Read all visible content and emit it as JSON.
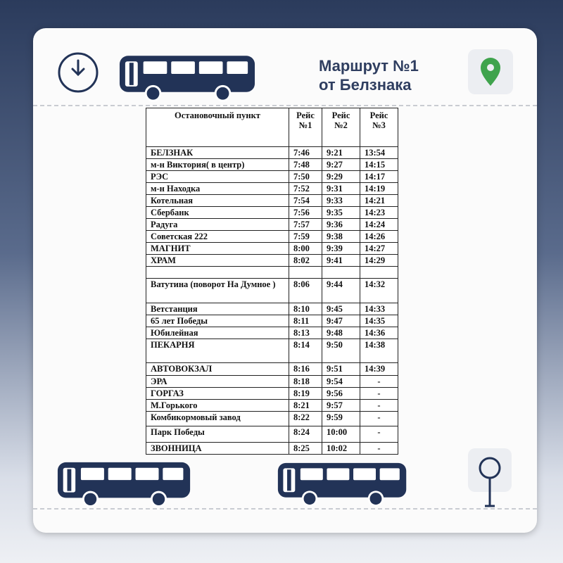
{
  "header": {
    "title_line1": "Маршрут №1",
    "title_line2": "от Белзнака"
  },
  "table": {
    "columns": [
      "Остановочный пункт",
      "Рейс №1",
      "Рейс №2",
      "Рейс №3"
    ],
    "rows": [
      [
        "БЕЛЗНАК",
        "7:46",
        "9:21",
        "13:54"
      ],
      [
        "м-н Виктория( в центр)",
        "7:48",
        "9:27",
        "14:15"
      ],
      [
        "РЭС",
        "7:50",
        "9:29",
        "14:17"
      ],
      [
        "м-н Находка",
        "7:52",
        "9:31",
        "14:19"
      ],
      [
        "Котельная",
        "7:54",
        "9:33",
        "14:21"
      ],
      [
        "Сбербанк",
        "7:56",
        "9:35",
        "14:23"
      ],
      [
        "Радуга",
        "7:57",
        "9:36",
        "14:24"
      ],
      [
        "Советская 222",
        "7:59",
        "9:38",
        "14:26"
      ],
      [
        "МАГНИТ",
        "8:00",
        "9:39",
        "14:27"
      ],
      [
        "ХРАМ",
        "8:02",
        "9:41",
        "14:29"
      ],
      [
        "Ватутина (поворот На Думное )",
        "8:06",
        "9:44",
        "14:32"
      ],
      [
        "Ветстанция",
        "8:10",
        "9:45",
        "14:33"
      ],
      [
        "65 лет Победы",
        "8:11",
        "9:47",
        "14:35"
      ],
      [
        "Юбилейная",
        "8:13",
        "9:48",
        "14:36"
      ],
      [
        "ПЕКАРНЯ",
        "8:14",
        "9:50",
        "14:38"
      ],
      [
        "АВТОВОКЗАЛ",
        "8:16",
        "9:51",
        "14:39"
      ],
      [
        "ЭРА",
        "8:18",
        "9:54",
        "-"
      ],
      [
        "ГОРГАЗ",
        "8:19",
        "9:56",
        "-"
      ],
      [
        "М.Горького",
        "8:21",
        "9:57",
        "-"
      ],
      [
        "Комбикормовый завод",
        "8:22",
        "9:59",
        "-"
      ],
      [
        "Парк Победы",
        "8:24",
        "10:00",
        "-"
      ],
      [
        "ЗВОННИЦА",
        "8:25",
        "10:02",
        "-"
      ]
    ]
  }
}
